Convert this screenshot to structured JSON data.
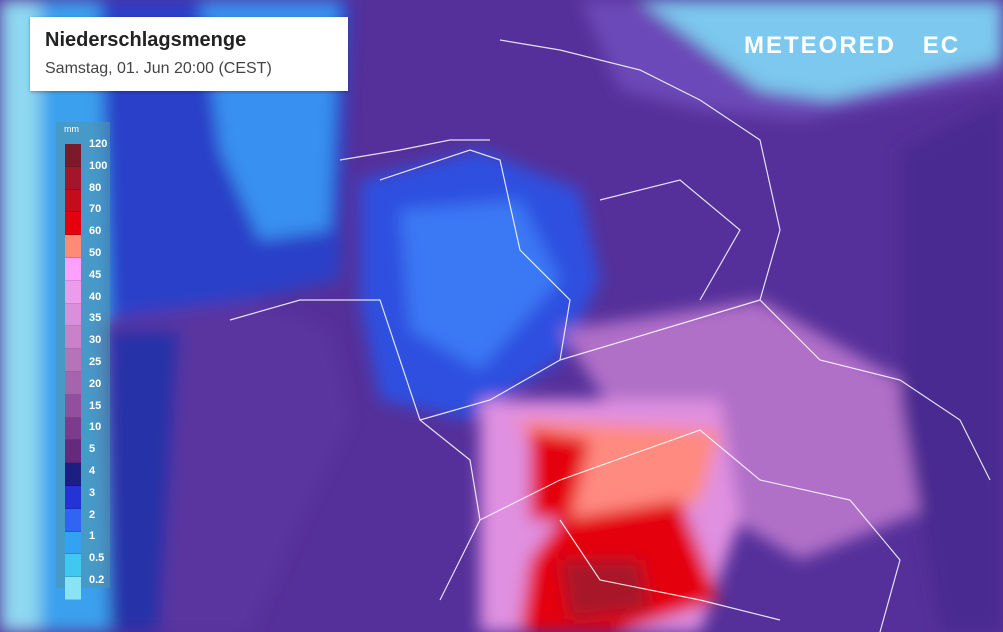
{
  "header": {
    "title": "Niederschlagsmenge",
    "subtitle": "Samstag, 01. Jun 20:00 (CEST)"
  },
  "legend": {
    "unit": "mm",
    "labels": [
      "120",
      "100",
      "80",
      "70",
      "60",
      "50",
      "45",
      "40",
      "35",
      "30",
      "25",
      "20",
      "15",
      "10",
      "5",
      "4",
      "3",
      "2",
      "1",
      "0.5",
      "0.2"
    ],
    "colors": [
      "#7c1a2c",
      "#a3152a",
      "#c40c1c",
      "#e4000e",
      "#ff8a78",
      "#ffa0ff",
      "#ec9ceb",
      "#db8fdb",
      "#c981c9",
      "#b773b8",
      "#a564ac",
      "#914f9e",
      "#7c3c8e",
      "#632a7e",
      "#1c1e82",
      "#2434d4",
      "#3264f4",
      "#32a2f2",
      "#40c8f2",
      "#88e4f4",
      "#a8fafa"
    ]
  },
  "brand": {
    "logo_text": "METEORED",
    "logo_suffix": "EC"
  }
}
